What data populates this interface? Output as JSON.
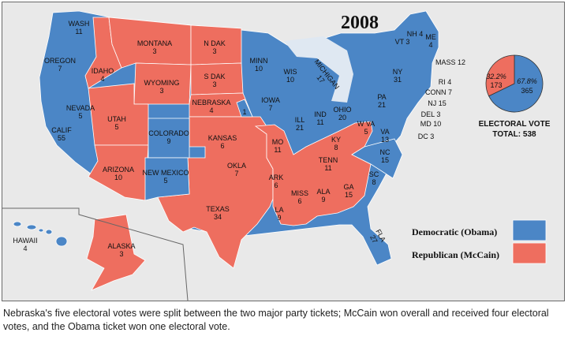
{
  "title": "2008",
  "colors": {
    "democratic": "#4b86c6",
    "republican": "#ee6e5f",
    "lake": "#dfe8f2",
    "background": "#e9e9e9"
  },
  "states": [
    {
      "id": "wash",
      "name": "WASH",
      "votes": "11",
      "party": "dem"
    },
    {
      "id": "oregon",
      "name": "OREGON",
      "votes": "7",
      "party": "dem"
    },
    {
      "id": "calif",
      "name": "CALIF",
      "votes": "55",
      "party": "dem"
    },
    {
      "id": "nevada",
      "name": "NEVADA",
      "votes": "5",
      "party": "dem"
    },
    {
      "id": "idaho",
      "name": "IDAHO",
      "votes": "4",
      "party": "rep"
    },
    {
      "id": "montana",
      "name": "MONTANA",
      "votes": "3",
      "party": "rep"
    },
    {
      "id": "wyoming",
      "name": "WYOMING",
      "votes": "3",
      "party": "rep"
    },
    {
      "id": "utah",
      "name": "UTAH",
      "votes": "5",
      "party": "rep"
    },
    {
      "id": "arizona",
      "name": "ARIZONA",
      "votes": "10",
      "party": "rep"
    },
    {
      "id": "colorado",
      "name": "COLORADO",
      "votes": "9",
      "party": "dem"
    },
    {
      "id": "newmexico",
      "name": "NEW MEXICO",
      "votes": "5",
      "party": "dem"
    },
    {
      "id": "ndak",
      "name": "N DAK",
      "votes": "3",
      "party": "rep"
    },
    {
      "id": "sdak",
      "name": "S DAK",
      "votes": "3",
      "party": "rep"
    },
    {
      "id": "nebraska",
      "name": "NEBRASKA",
      "votes": "4",
      "party": "rep"
    },
    {
      "id": "nebraska_dem",
      "name": "",
      "votes": "1",
      "party": "dem"
    },
    {
      "id": "kansas",
      "name": "KANSAS",
      "votes": "6",
      "party": "rep"
    },
    {
      "id": "okla",
      "name": "OKLA",
      "votes": "7",
      "party": "rep"
    },
    {
      "id": "texas",
      "name": "TEXAS",
      "votes": "34",
      "party": "rep"
    },
    {
      "id": "minn",
      "name": "MINN",
      "votes": "10",
      "party": "dem"
    },
    {
      "id": "iowa",
      "name": "IOWA",
      "votes": "7",
      "party": "dem"
    },
    {
      "id": "mo",
      "name": "MO",
      "votes": "11",
      "party": "rep"
    },
    {
      "id": "ark",
      "name": "ARK",
      "votes": "6",
      "party": "rep"
    },
    {
      "id": "la",
      "name": "LA",
      "votes": "9",
      "party": "rep"
    },
    {
      "id": "wis",
      "name": "WIS",
      "votes": "10",
      "party": "dem"
    },
    {
      "id": "ill",
      "name": "ILL",
      "votes": "21",
      "party": "dem"
    },
    {
      "id": "michigan",
      "name": "MICHIGAN",
      "votes": "17",
      "party": "dem"
    },
    {
      "id": "ind",
      "name": "IND",
      "votes": "11",
      "party": "dem"
    },
    {
      "id": "ohio",
      "name": "OHIO",
      "votes": "20",
      "party": "dem"
    },
    {
      "id": "ky",
      "name": "KY",
      "votes": "8",
      "party": "rep"
    },
    {
      "id": "tenn",
      "name": "TENN",
      "votes": "11",
      "party": "rep"
    },
    {
      "id": "miss",
      "name": "MISS",
      "votes": "6",
      "party": "rep"
    },
    {
      "id": "ala",
      "name": "ALA",
      "votes": "9",
      "party": "rep"
    },
    {
      "id": "ga",
      "name": "GA",
      "votes": "15",
      "party": "rep"
    },
    {
      "id": "fla",
      "name": "FLA",
      "votes": "27",
      "party": "dem"
    },
    {
      "id": "sc",
      "name": "SC",
      "votes": "8",
      "party": "rep"
    },
    {
      "id": "nc",
      "name": "NC",
      "votes": "15",
      "party": "dem"
    },
    {
      "id": "va",
      "name": "VA",
      "votes": "13",
      "party": "dem"
    },
    {
      "id": "wva",
      "name": "W VA",
      "votes": "5",
      "party": "rep"
    },
    {
      "id": "pa",
      "name": "PA",
      "votes": "21",
      "party": "dem"
    },
    {
      "id": "ny",
      "name": "NY",
      "votes": "31",
      "party": "dem"
    },
    {
      "id": "vt",
      "name": "VT",
      "votes": "3",
      "party": "dem"
    },
    {
      "id": "nh",
      "name": "NH",
      "votes": "4",
      "party": "dem"
    },
    {
      "id": "me",
      "name": "ME",
      "votes": "4",
      "party": "dem"
    },
    {
      "id": "mass",
      "name": "MASS",
      "votes": "12",
      "party": "dem"
    },
    {
      "id": "ri",
      "name": "RI",
      "votes": "4",
      "party": "dem"
    },
    {
      "id": "conn",
      "name": "CONN",
      "votes": "7",
      "party": "dem"
    },
    {
      "id": "nj",
      "name": "NJ",
      "votes": "15",
      "party": "dem"
    },
    {
      "id": "del",
      "name": "DEL",
      "votes": "3",
      "party": "dem"
    },
    {
      "id": "md",
      "name": "MD",
      "votes": "10",
      "party": "dem"
    },
    {
      "id": "dc",
      "name": "DC",
      "votes": "3",
      "party": "dem"
    },
    {
      "id": "hawaii",
      "name": "HAWAII",
      "votes": "4",
      "party": "dem"
    },
    {
      "id": "alaska",
      "name": "ALASKA",
      "votes": "3",
      "party": "rep"
    }
  ],
  "pie": {
    "title": "ELECTORAL VOTE",
    "total_label": "TOTAL: 538",
    "democratic": {
      "percent": "67.8%",
      "votes": "365",
      "fraction": 0.678
    },
    "republican": {
      "percent": "32.2%",
      "votes": "173",
      "fraction": 0.322
    }
  },
  "legend": [
    {
      "label": "Democratic (Obama)",
      "party": "dem"
    },
    {
      "label": "Republican (McCain)",
      "party": "rep"
    }
  ],
  "caption": "Nebraska's five electoral votes were split between the two major party tickets; McCain won overall and received four electoral votes, and the Obama ticket won one electoral vote."
}
